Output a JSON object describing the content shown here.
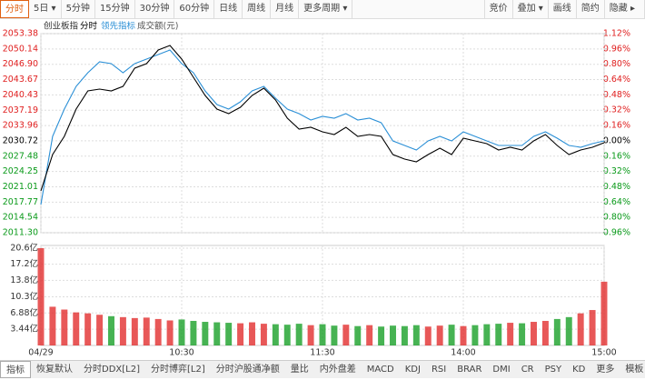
{
  "toolbar": {
    "tabs": [
      "分时",
      "5日 ▾",
      "5分钟",
      "15分钟",
      "30分钟",
      "60分钟",
      "日线",
      "周线",
      "月线",
      "更多周期 ▾"
    ],
    "right": [
      "竞价",
      "叠加 ▾",
      "画线",
      "简约",
      "隐藏 ▸"
    ]
  },
  "legend": {
    "title": "创业板指",
    "volume": "成交额(元)"
  },
  "chart_data": {
    "type": "line",
    "x": [
      0,
      5,
      10,
      15,
      20,
      25,
      30,
      35,
      40,
      45,
      50,
      55,
      60,
      65,
      70,
      75,
      80,
      85,
      90,
      95,
      100,
      105,
      110,
      115,
      120,
      125,
      130,
      135,
      140,
      145,
      150,
      155,
      160,
      165,
      170,
      175,
      180,
      185,
      190,
      195,
      200,
      205,
      210,
      215,
      220,
      225,
      230,
      235,
      240
    ],
    "xlim": [
      0,
      240
    ],
    "xticks": [
      {
        "value": 0,
        "label": "04/29"
      },
      {
        "value": 60,
        "label": "10:30"
      },
      {
        "value": 120,
        "label": "11:30"
      },
      {
        "value": 180,
        "label": "14:00"
      },
      {
        "value": 240,
        "label": "15:00"
      }
    ],
    "ylim": [
      2011.3,
      2053.38
    ],
    "yticks": [
      2053.38,
      2050.14,
      {
        "value": 2046.9,
        "label": "2046.90"
      },
      2043.67,
      2040.43,
      2037.19,
      2033.96,
      2030.72,
      2027.48,
      2024.25,
      2021.01,
      2017.77,
      2014.54,
      {
        "value": 2011.3,
        "label": "2011.30"
      }
    ],
    "y2lim": [
      -0.96,
      1.12
    ],
    "y2ticks": [
      {
        "value": 1.12,
        "label": "1.12%"
      },
      {
        "value": 0.96,
        "label": "0.96%"
      },
      {
        "value": 0.8,
        "label": "0.80%"
      },
      {
        "value": 0.64,
        "label": "0.64%"
      },
      {
        "value": 0.48,
        "label": "0.48%"
      },
      {
        "value": 0.32,
        "label": "0.32%"
      },
      {
        "value": 0.16,
        "label": "0.16%"
      },
      {
        "value": 0,
        "label": "0.00%"
      },
      {
        "value": -0.16,
        "label": "0.16%"
      },
      {
        "value": -0.32,
        "label": "0.32%"
      },
      {
        "value": -0.48,
        "label": "0.48%"
      },
      {
        "value": -0.64,
        "label": "0.64%"
      },
      {
        "value": -0.8,
        "label": "0.80%"
      },
      {
        "value": -0.96,
        "label": "0.96%"
      }
    ],
    "series": [
      {
        "name": "分时",
        "color": "#000000",
        "values": [
          2020.14,
          2027.82,
          2031.67,
          2037.43,
          2041.27,
          2041.66,
          2041.27,
          2042.24,
          2046.08,
          2047.04,
          2049.92,
          2050.88,
          2048.0,
          2044.16,
          2040.31,
          2037.43,
          2036.47,
          2037.82,
          2040.31,
          2041.85,
          2039.35,
          2035.51,
          2033.2,
          2033.59,
          2032.63,
          2032.05,
          2033.59,
          2031.67,
          2032.05,
          2031.67,
          2027.82,
          2026.86,
          2026.29,
          2027.82,
          2029.17,
          2027.82,
          2031.28,
          2030.71,
          2030.13,
          2028.79,
          2029.36,
          2028.79,
          2030.71,
          2032.05,
          2029.75,
          2027.82,
          2028.79,
          2029.36,
          2030.32
        ]
      },
      {
        "name": "领先指标",
        "color": "#2a8fd6",
        "values": [
          2017.26,
          2031.67,
          2037.43,
          2042.24,
          2045.12,
          2047.42,
          2047.04,
          2045.12,
          2047.04,
          2048.0,
          2048.96,
          2049.92,
          2047.04,
          2045.12,
          2041.27,
          2038.39,
          2037.43,
          2038.97,
          2041.27,
          2042.24,
          2039.74,
          2037.43,
          2036.47,
          2035.13,
          2035.89,
          2035.51,
          2036.47,
          2035.13,
          2035.51,
          2034.55,
          2030.71,
          2029.75,
          2028.79,
          2030.71,
          2031.67,
          2030.71,
          2032.63,
          2031.67,
          2030.71,
          2029.75,
          2029.75,
          2029.75,
          2031.67,
          2032.63,
          2031.28,
          2029.75,
          2029.36,
          2030.13,
          2030.71
        ]
      }
    ],
    "volume": {
      "values": [
        20.6,
        8.2,
        7.6,
        7.0,
        6.8,
        6.5,
        6.2,
        6.0,
        5.8,
        5.9,
        5.6,
        5.3,
        5.5,
        5.2,
        5.0,
        4.9,
        4.8,
        4.7,
        4.9,
        4.6,
        4.5,
        4.4,
        4.6,
        4.3,
        4.5,
        4.2,
        4.4,
        4.1,
        4.3,
        4.0,
        4.2,
        4.1,
        4.3,
        4.0,
        4.2,
        4.4,
        4.1,
        4.3,
        4.5,
        4.6,
        4.8,
        4.7,
        5.0,
        5.2,
        5.6,
        6.0,
        6.8,
        7.5,
        13.5
      ],
      "ylim": [
        0,
        20.6
      ],
      "yticks": [
        {
          "value": 20.6,
          "label": "20.6亿"
        },
        {
          "value": 17.2,
          "label": "17.2亿"
        },
        {
          "value": 13.8,
          "label": "13.8亿"
        },
        {
          "value": 10.3,
          "label": "10.3亿"
        },
        {
          "value": 6.88,
          "label": "6.88亿"
        },
        {
          "value": 3.44,
          "label": "3.44亿"
        }
      ]
    },
    "up_color": "#e02020",
    "down_color": "#0a9a1a",
    "grid": true
  },
  "bottom_tabs": [
    "指标",
    "恢复默认",
    "分时DDX[L2]",
    "分时博弈[L2]",
    "分时沪股通净额",
    "量比",
    "内外盘差",
    "MACD",
    "KDJ",
    "RSI",
    "BRAR",
    "DMI",
    "CR",
    "PSY",
    "KD",
    "更多",
    "模板"
  ]
}
